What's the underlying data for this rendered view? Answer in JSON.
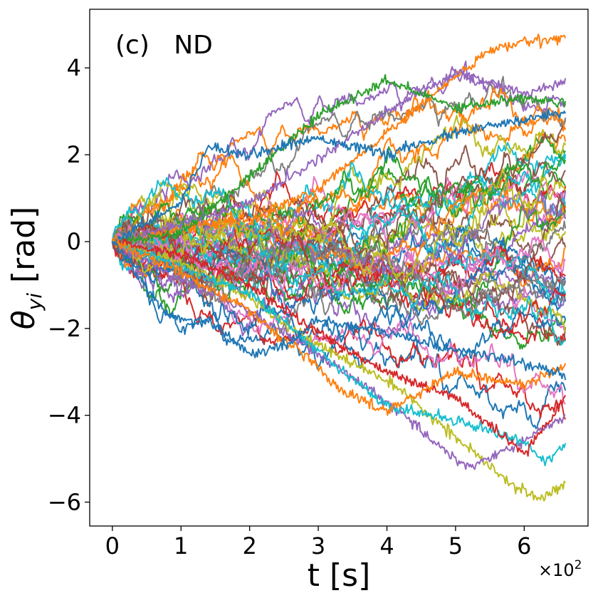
{
  "chart_data": {
    "type": "line",
    "title": "",
    "panel_label": "(c)   ND",
    "xlabel": "t [s]",
    "ylabel_symbol": "θ",
    "ylabel_subscript": "yi",
    "ylabel_unit": "[rad]",
    "x_offset_label": "×10",
    "x_offset_exponent": "2",
    "xlim": [
      -0.33,
      6.93
    ],
    "ylim": [
      -6.55,
      5.35
    ],
    "x_ticks": [
      0,
      1,
      2,
      3,
      4,
      5,
      6
    ],
    "x_tick_labels": [
      "0",
      "1",
      "2",
      "3",
      "4",
      "5",
      "6"
    ],
    "y_ticks": [
      -6,
      -4,
      -2,
      0,
      2,
      4
    ],
    "y_tick_labels": [
      "−6",
      "−4",
      "−2",
      "0",
      "2",
      "4"
    ],
    "x_range": [
      0,
      6.6
    ],
    "n_series": 60,
    "grid": false,
    "legend": "none",
    "series_note": "random-walk trajectories starting at 0; spread grows with t",
    "series": [
      {
        "name": "orange top",
        "color": "#ff7f0e",
        "x": [
          0,
          1,
          2,
          3,
          4,
          5,
          5.5,
          6,
          6.6
        ],
        "values": [
          0,
          0.3,
          0.5,
          1.2,
          2.5,
          3.8,
          4.4,
          4.6,
          4.7
        ]
      },
      {
        "name": "purple high",
        "color": "#9467bd",
        "x": [
          0,
          1,
          2,
          3,
          4,
          5,
          6,
          6.6
        ],
        "values": [
          0,
          0.4,
          0.9,
          1.9,
          3.0,
          3.9,
          3.4,
          3.7
        ]
      },
      {
        "name": "green high",
        "color": "#2ca02c",
        "x": [
          0,
          1,
          2,
          3,
          4,
          5,
          6,
          6.6
        ],
        "values": [
          0,
          0.2,
          1.5,
          2.9,
          3.7,
          3.1,
          3.3,
          3.2
        ]
      },
      {
        "name": "blue early high",
        "color": "#1f77b4",
        "x": [
          0,
          1,
          1.4,
          2,
          3,
          4,
          5,
          6,
          6.6
        ],
        "values": [
          0,
          0.9,
          2.2,
          2.0,
          2.4,
          2.0,
          2.5,
          2.8,
          3.0
        ]
      },
      {
        "name": "olive bottom",
        "color": "#bcbd22",
        "x": [
          0,
          1,
          2,
          3,
          4,
          5,
          5.8,
          6.2,
          6.6
        ],
        "values": [
          0,
          -0.5,
          -1.3,
          -2.4,
          -3.2,
          -4.5,
          -5.6,
          -5.9,
          -5.6
        ]
      },
      {
        "name": "purple low",
        "color": "#9467bd",
        "x": [
          0,
          1,
          2,
          3,
          4,
          5,
          5.2,
          6,
          6.6
        ],
        "values": [
          0,
          -0.9,
          -1.6,
          -2.6,
          -3.7,
          -5.0,
          -5.2,
          -4.6,
          -4.0
        ]
      },
      {
        "name": "cyan low",
        "color": "#17becf",
        "x": [
          0,
          1,
          2,
          3,
          4,
          5,
          6,
          6.3,
          6.6
        ],
        "values": [
          0,
          -0.6,
          -1.2,
          -2.5,
          -3.8,
          -4.1,
          -4.6,
          -5.1,
          -4.7
        ]
      },
      {
        "name": "red low",
        "color": "#d62728",
        "x": [
          0,
          1,
          2,
          3,
          4,
          5,
          6,
          6.6
        ],
        "values": [
          0,
          -0.3,
          -1.0,
          -2.1,
          -3.0,
          -3.6,
          -4.9,
          -3.6
        ]
      },
      {
        "name": "orange low",
        "color": "#ff7f0e",
        "x": [
          0,
          1,
          2,
          3,
          3.3,
          4,
          5,
          6,
          6.6
        ],
        "values": [
          0,
          -0.7,
          -1.6,
          -2.9,
          -3.4,
          -3.9,
          -3.0,
          -3.3,
          -2.9
        ]
      },
      {
        "name": "blue low",
        "color": "#1f77b4",
        "x": [
          0,
          0.8,
          1.5,
          2,
          2.5,
          3,
          4,
          5,
          6,
          6.6
        ],
        "values": [
          0,
          -1.7,
          -1.9,
          -2.6,
          -2.4,
          -1.8,
          -2.1,
          -2.5,
          -2.8,
          -3.1
        ]
      }
    ]
  }
}
